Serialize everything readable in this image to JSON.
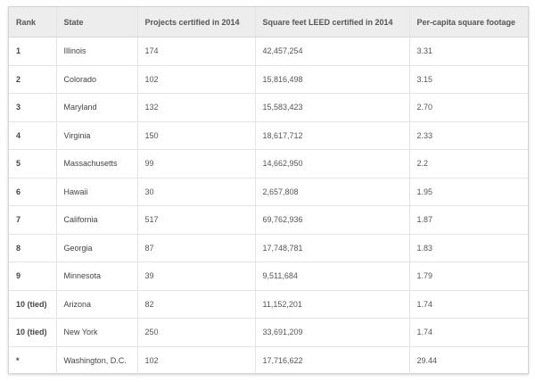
{
  "table": {
    "headers": [
      "Rank",
      "State",
      "Projects certified in 2014",
      "Square feet LEED certified in 2014",
      "Per-capita square footage"
    ],
    "rows": [
      [
        "1",
        "Illinois",
        "174",
        "42,457,254",
        "3.31"
      ],
      [
        "2",
        "Colorado",
        "102",
        "15,816,498",
        "3.15"
      ],
      [
        "3",
        "Maryland",
        "132",
        "15,583,423",
        "2.70"
      ],
      [
        "4",
        "Virginia",
        "150",
        "18,617,712",
        "2.33"
      ],
      [
        "5",
        "Massachusetts",
        "99",
        "14,662,950",
        "2.2"
      ],
      [
        "6",
        "Hawaii",
        "30",
        "2,657,808",
        "1.95"
      ],
      [
        "7",
        "California",
        "517",
        "69,762,936",
        "1.87"
      ],
      [
        "8",
        "Georgia",
        "87",
        "17,748,781",
        "1.83"
      ],
      [
        "9",
        "Minnesota",
        "39",
        "9,511,684",
        "1.79"
      ],
      [
        "10 (tied)",
        "Arizona",
        "82",
        "11,152,201",
        "1.74"
      ],
      [
        "10 (tied)",
        "New York",
        "250",
        "33,691,209",
        "1.74"
      ],
      [
        "*",
        "Washington, D.C.",
        "102",
        "17,716,622",
        "29.44"
      ]
    ]
  }
}
